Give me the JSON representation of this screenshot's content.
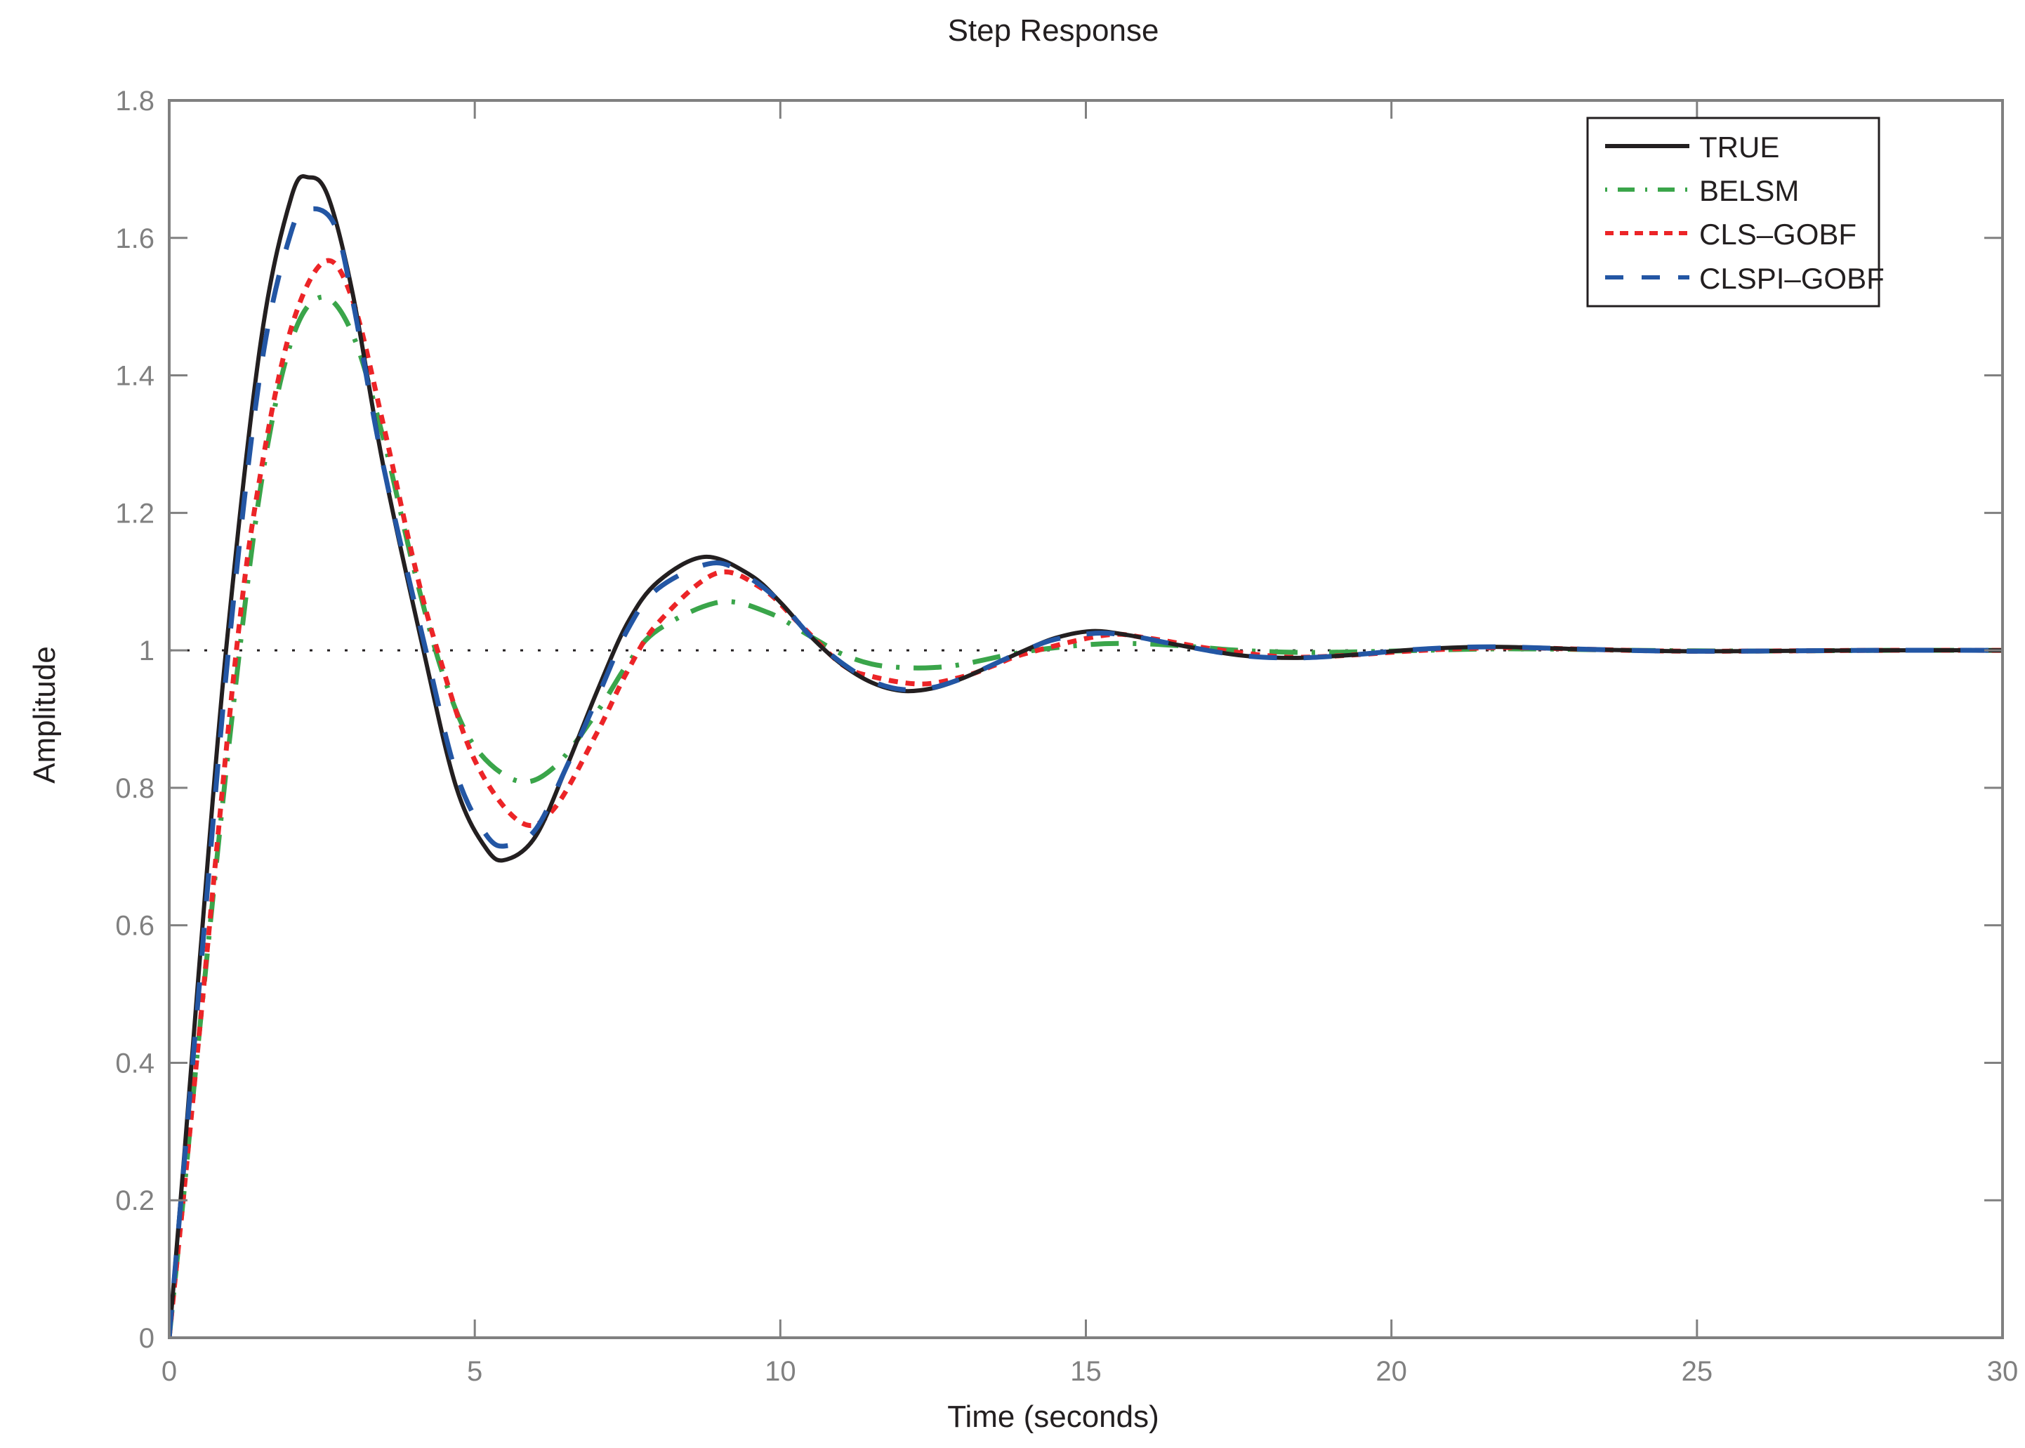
{
  "chart_data": {
    "type": "line",
    "title": "Step Response",
    "xlabel": "Time (seconds)",
    "ylabel": "Amplitude",
    "xlim": [
      0,
      30
    ],
    "ylim": [
      0,
      1.8
    ],
    "xticks": [
      0,
      5,
      10,
      15,
      20,
      25,
      30
    ],
    "xtick_labels": [
      "0",
      "5",
      "10",
      "15",
      "20",
      "25",
      "30"
    ],
    "yticks": [
      0,
      0.2,
      0.4,
      0.6,
      0.8,
      1.0,
      1.2,
      1.4,
      1.6,
      1.8
    ],
    "ytick_labels": [
      "0",
      "0.2",
      "0.4",
      "0.6",
      "0.8",
      "1",
      "1.2",
      "1.4",
      "1.6",
      "1.8"
    ],
    "grid": false,
    "legend_position": "upper right",
    "reference_line": {
      "y": 1.0,
      "style": "dotted",
      "color": "#231f20"
    },
    "series": [
      {
        "name": "TRUE",
        "color": "#231f20",
        "style": "solid",
        "x": [
          0,
          0.25,
          0.5,
          0.93,
          1.5,
          2.0,
          2.29,
          2.6,
          3.0,
          3.5,
          4.16,
          4.7,
          5.2,
          5.53,
          6.0,
          6.5,
          7.0,
          7.5,
          8.0,
          8.76,
          9.5,
          10.0,
          10.5,
          11.0,
          11.5,
          12.0,
          12.5,
          13.0,
          13.5,
          14.0,
          14.5,
          15.1,
          15.7,
          16.5,
          17.5,
          18.4,
          19.3,
          20.2,
          21.0,
          21.8,
          23.0,
          24.5,
          26.0,
          28.0,
          30.0
        ],
        "y": [
          0,
          0.27,
          0.55,
          1.0,
          1.45,
          1.66,
          1.688,
          1.66,
          1.52,
          1.27,
          1.0,
          0.8,
          0.71,
          0.696,
          0.73,
          0.83,
          0.94,
          1.04,
          1.1,
          1.136,
          1.11,
          1.07,
          1.02,
          0.98,
          0.953,
          0.941,
          0.945,
          0.96,
          0.98,
          1.0,
          1.018,
          1.028,
          1.022,
          1.008,
          0.993,
          0.989,
          0.993,
          1.0,
          1.004,
          1.005,
          1.002,
          0.999,
          0.999,
          1.0,
          1.0
        ]
      },
      {
        "name": "BELSM",
        "color": "#3aa54a",
        "style": "dashdot",
        "x": [
          0,
          0.25,
          0.5,
          1.0,
          1.5,
          2.0,
          2.5,
          3.0,
          3.5,
          4.0,
          4.5,
          5.0,
          5.7,
          6.3,
          7.0,
          7.5,
          8.0,
          9.0,
          9.8,
          10.5,
          11.0,
          11.5,
          12.0,
          12.5,
          13.0,
          14.0,
          15.0,
          15.7,
          16.5,
          17.5,
          18.5,
          19.5,
          20.5,
          21.5,
          22.5,
          24.0,
          26.0,
          28.0,
          30.0
        ],
        "y": [
          0,
          0.22,
          0.45,
          0.88,
          1.24,
          1.45,
          1.514,
          1.46,
          1.31,
          1.12,
          0.96,
          0.86,
          0.81,
          0.83,
          0.91,
          0.98,
          1.03,
          1.07,
          1.055,
          1.02,
          0.995,
          0.98,
          0.975,
          0.975,
          0.98,
          0.998,
          1.008,
          1.01,
          1.007,
          1.0,
          0.997,
          0.998,
          1.0,
          1.002,
          1.002,
          1.0,
          0.999,
          1.0,
          1.0
        ]
      },
      {
        "name": "CLS–GOBF",
        "color": "#ec2427",
        "style": "dotted",
        "x": [
          0,
          0.25,
          0.5,
          1.1,
          1.5,
          2.0,
          2.55,
          3.0,
          3.5,
          4.0,
          4.39,
          5.0,
          5.75,
          6.3,
          7.0,
          7.5,
          8.0,
          8.95,
          9.7,
          10.3,
          11.0,
          11.5,
          12.3,
          13.0,
          13.5,
          14.0,
          15.3,
          16.0,
          17.0,
          18.0,
          18.6,
          19.5,
          20.5,
          21.8,
          23.0,
          24.5,
          26.0,
          28.0,
          30.0
        ],
        "y": [
          0,
          0.22,
          0.45,
          1.0,
          1.26,
          1.47,
          1.566,
          1.51,
          1.33,
          1.13,
          1.0,
          0.84,
          0.75,
          0.77,
          0.88,
          0.97,
          1.04,
          1.112,
          1.09,
          1.04,
          0.98,
          0.962,
          0.951,
          0.962,
          0.978,
          0.995,
          1.022,
          1.018,
          1.003,
          0.992,
          0.99,
          0.994,
          1.0,
          1.004,
          1.002,
          0.999,
          0.999,
          1.0,
          1.0
        ]
      },
      {
        "name": "CLSPI–GOBF",
        "color": "#2356a4",
        "style": "dashed",
        "x": [
          0,
          0.25,
          0.5,
          0.97,
          1.5,
          2.0,
          2.3,
          2.7,
          3.0,
          3.5,
          4.2,
          4.7,
          5.2,
          5.55,
          6.0,
          6.5,
          7.0,
          7.5,
          8.0,
          8.9,
          9.5,
          10.0,
          10.5,
          11.0,
          11.5,
          12.0,
          12.5,
          13.0,
          13.5,
          14.0,
          14.5,
          15.2,
          15.8,
          16.5,
          17.5,
          18.4,
          19.3,
          20.2,
          21.0,
          21.8,
          23.0,
          24.5,
          26.0,
          28.0,
          30.0
        ],
        "y": [
          0,
          0.26,
          0.52,
          1.0,
          1.41,
          1.61,
          1.642,
          1.62,
          1.51,
          1.27,
          1.0,
          0.82,
          0.73,
          0.716,
          0.74,
          0.83,
          0.93,
          1.03,
          1.09,
          1.127,
          1.105,
          1.07,
          1.02,
          0.982,
          0.955,
          0.943,
          0.946,
          0.96,
          0.98,
          1.0,
          1.016,
          1.025,
          1.02,
          1.008,
          0.993,
          0.989,
          0.993,
          1.0,
          1.004,
          1.005,
          1.002,
          0.999,
          0.999,
          1.0,
          1.0
        ]
      }
    ]
  },
  "legend": {
    "items": [
      {
        "label": "TRUE",
        "color": "#231f20",
        "style": "solid"
      },
      {
        "label": "BELSM",
        "color": "#3aa54a",
        "style": "dashdot"
      },
      {
        "label": "CLS–GOBF",
        "color": "#ec2427",
        "style": "dotted"
      },
      {
        "label": "CLSPI–GOBF",
        "color": "#2356a4",
        "style": "dashed"
      }
    ]
  },
  "colors": {
    "axis": "#808080",
    "text": "#231f20",
    "background": "#ffffff"
  }
}
